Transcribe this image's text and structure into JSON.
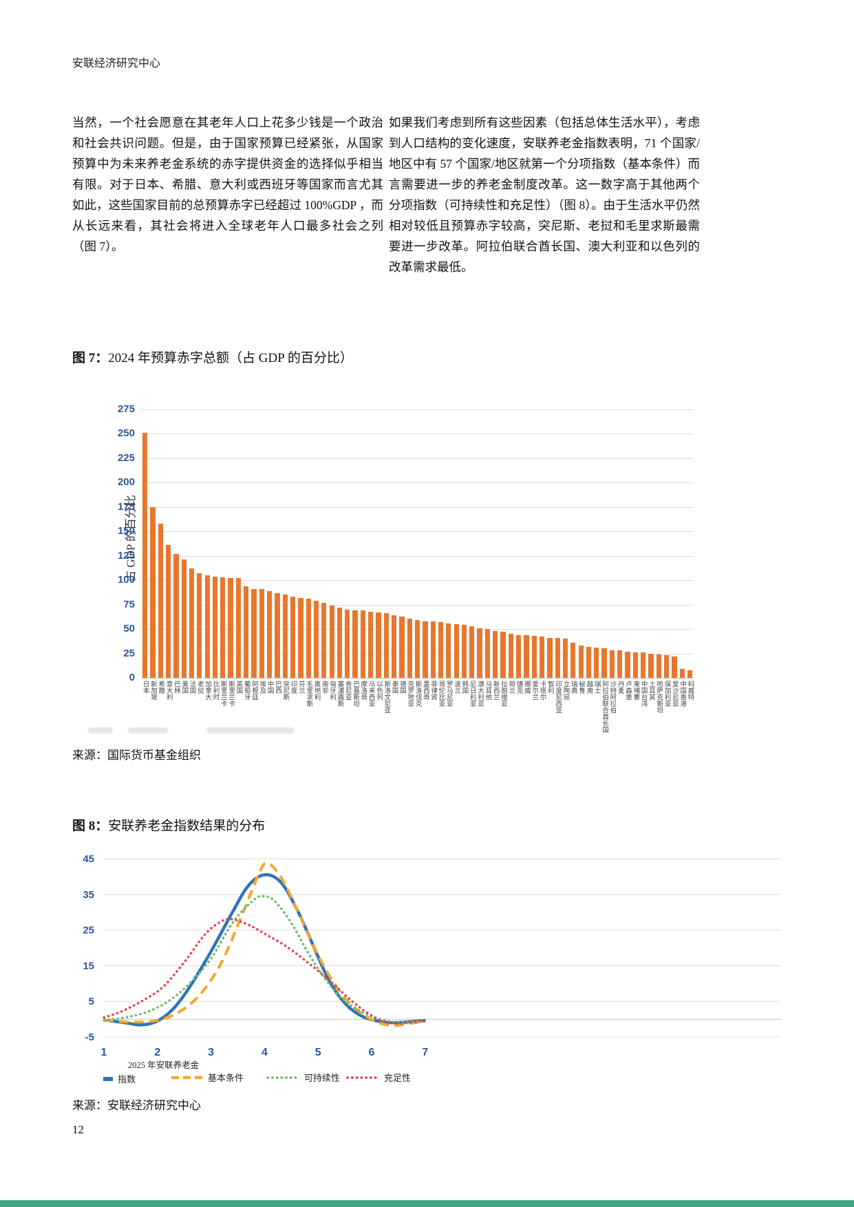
{
  "header": "安联经济研究中心",
  "page_number": "12",
  "body": {
    "left_paragraph": "当然，一个社会愿意在其老年人口上花多少钱是一个政治和社会共识问题。但是，由于国家预算已经紧张，从国家预算中为未来养老金系统的赤字提供资金的选择似乎相当有限。对于日本、希腊、意大利或西班牙等国家而言尤其如此，这些国家目前的总预算赤字已经超过 100%GDP ，而从长远来看，其社会将进入全球老年人口最多社会之列（图 7）。",
    "right_paragraph": "如果我们考虑到所有这些因素（包括总体生活水平），考虑到人口结构的变化速度，安联养老金指数表明，71 个国家/地区中有 57 个国家/地区就第一个分项指数（基本条件）而言需要进一步的养老金制度改革。这一数字高于其他两个分项指数（可持续性和充足性）（图 8）。由于生活水平仍然相对较低且预算赤字较高，突尼斯、老挝和毛里求斯最需要进一步改革。阿拉伯联合酋长国、澳大利亚和以色列的改革需求最低。"
  },
  "figure7": {
    "caption_label": "图 7：",
    "caption_text": "2024 年预算赤字总额（占 GDP 的百分比）",
    "y_axis_label": "占 GDP 的百分比",
    "source": "来源：国际货币基金组织"
  },
  "figure8": {
    "caption_label": "图 8：",
    "caption_text": "安联养老金指数结果的分布",
    "source": "来源：安联经济研究中心",
    "legend": {
      "item1_line1": "2025 年安联养老金",
      "item1_line2": "指数",
      "item2": "基本条件",
      "item3": "可持续性",
      "item4": "充足性"
    }
  },
  "chart_data": [
    {
      "type": "bar",
      "title": "2024 年预算赤字总额（占 GDP 的百分比）",
      "xlabel": "",
      "ylabel": "占 GDP 的百分比",
      "ylim": [
        0,
        275
      ],
      "yticks": [
        275,
        250,
        225,
        200,
        175,
        150,
        125,
        100,
        75,
        50,
        25,
        0
      ],
      "grid": true,
      "bar_color": "#E8772E",
      "categories": [
        "日本",
        "新加坡",
        "希腊",
        "意大利",
        "巴林",
        "美国",
        "法国",
        "老挝",
        "加拿大",
        "比利时",
        "斯里兰卡",
        "斯里兰卡",
        "英国",
        "葡萄牙",
        "阿根廷",
        "埃及",
        "中国",
        "巴西",
        "突尼斯",
        "印度",
        "芬兰",
        "毛里求斯",
        "奥地利",
        "南非",
        "匈牙利",
        "塞浦路斯",
        "肯尼亚",
        "巴基斯坦",
        "摩洛哥",
        "马来西亚",
        "以色列",
        "斯洛文尼亚",
        "泰国",
        "德国",
        "克罗地亚",
        "斯洛伐克",
        "墨西哥",
        "菲律宾",
        "哥伦比亚",
        "罗马尼亚",
        "波兰",
        "韩国",
        "尼日利亚",
        "澳大利亚",
        "马耳他",
        "新西兰",
        "拉脱维亚",
        "荷兰",
        "捷克",
        "挪威",
        "爱尔兰",
        "卡塔尔",
        "智利",
        "印度尼西亚",
        "立陶宛",
        "瑞典",
        "秘鲁",
        "越南",
        "瑞士",
        "阿拉伯联合酋长国",
        "沙特阿拉伯",
        "丹麦",
        "卢森堡",
        "柬埔寨",
        "中国台湾",
        "土耳其",
        "哈萨克斯坦",
        "保加利亚",
        "爱沙尼亚",
        "中国香港",
        "科威特"
      ],
      "values": [
        251,
        175,
        158,
        136,
        127,
        121,
        112,
        107,
        105,
        104,
        103,
        102,
        102,
        94,
        91,
        91,
        89,
        87,
        85,
        83,
        82,
        81,
        79,
        77,
        74,
        72,
        70,
        69,
        69,
        68,
        67,
        66,
        64,
        63,
        61,
        59,
        58,
        58,
        57,
        56,
        55,
        54,
        53,
        51,
        50,
        48,
        47,
        45,
        44,
        44,
        43,
        42,
        41,
        41,
        40,
        36,
        33,
        32,
        31,
        30,
        28,
        28,
        27,
        26,
        26,
        25,
        24,
        23,
        22,
        9,
        8
      ]
    },
    {
      "type": "line",
      "title": "安联养老金指数结果的分布",
      "xlabel": "",
      "ylabel": "",
      "xlim": [
        1,
        7
      ],
      "ylim": [
        -5,
        45
      ],
      "xticks": [
        1,
        2,
        3,
        4,
        5,
        6,
        7
      ],
      "yticks": [
        45,
        35,
        25,
        15,
        5,
        -5
      ],
      "grid": true,
      "legend_position": "bottom",
      "series": [
        {
          "name": "2025 年安联养老金指数",
          "color": "#2E75B6",
          "style": "solid",
          "points": [
            [
              1,
              -0.2
            ],
            [
              1.4,
              -1
            ],
            [
              1.7,
              -1.6
            ],
            [
              2.0,
              -0.5
            ],
            [
              2.3,
              3
            ],
            [
              2.6,
              9
            ],
            [
              3.0,
              19
            ],
            [
              3.4,
              30
            ],
            [
              3.7,
              37.5
            ],
            [
              4.0,
              40.5
            ],
            [
              4.3,
              38.5
            ],
            [
              4.6,
              31
            ],
            [
              4.9,
              21
            ],
            [
              5.2,
              11
            ],
            [
              5.5,
              4.5
            ],
            [
              5.8,
              1
            ],
            [
              6.1,
              -0.5
            ],
            [
              6.4,
              -1
            ],
            [
              6.7,
              -0.7
            ],
            [
              7,
              -0.4
            ]
          ]
        },
        {
          "name": "基本条件",
          "color": "#F0A830",
          "style": "dashed",
          "points": [
            [
              1,
              -0.2
            ],
            [
              1.5,
              -0.8
            ],
            [
              2.0,
              -0.3
            ],
            [
              2.4,
              2
            ],
            [
              2.8,
              7
            ],
            [
              3.2,
              16
            ],
            [
              3.6,
              30
            ],
            [
              3.9,
              41
            ],
            [
              4.05,
              43.8
            ],
            [
              4.3,
              40
            ],
            [
              4.6,
              31
            ],
            [
              4.9,
              21
            ],
            [
              5.2,
              12.5
            ],
            [
              5.5,
              6
            ],
            [
              5.8,
              1.8
            ],
            [
              6.1,
              -0.8
            ],
            [
              6.4,
              -1.8
            ],
            [
              6.7,
              -1.2
            ],
            [
              7,
              -0.6
            ]
          ]
        },
        {
          "name": "可持续性",
          "color": "#67BD69",
          "style": "dotted",
          "points": [
            [
              1,
              -0.3
            ],
            [
              1.4,
              0.5
            ],
            [
              1.8,
              2
            ],
            [
              2.2,
              5
            ],
            [
              2.6,
              10
            ],
            [
              3.0,
              17
            ],
            [
              3.4,
              27
            ],
            [
              3.8,
              33.5
            ],
            [
              4.0,
              34.5
            ],
            [
              4.2,
              33
            ],
            [
              4.5,
              27
            ],
            [
              4.8,
              19
            ],
            [
              5.1,
              12
            ],
            [
              5.4,
              6.5
            ],
            [
              5.7,
              3
            ],
            [
              6.0,
              0.8
            ],
            [
              6.3,
              -0.5
            ],
            [
              6.6,
              -0.8
            ],
            [
              7,
              -0.4
            ]
          ]
        },
        {
          "name": "充足性",
          "color": "#E8434F",
          "style": "dotted",
          "points": [
            [
              1,
              0.5
            ],
            [
              1.3,
              2
            ],
            [
              1.7,
              5
            ],
            [
              2.1,
              9
            ],
            [
              2.5,
              16
            ],
            [
              2.9,
              24
            ],
            [
              3.2,
              27.5
            ],
            [
              3.4,
              28
            ],
            [
              3.7,
              26.5
            ],
            [
              4.0,
              24
            ],
            [
              4.4,
              20.5
            ],
            [
              4.8,
              16
            ],
            [
              5.2,
              11
            ],
            [
              5.6,
              5.5
            ],
            [
              5.9,
              2
            ],
            [
              6.2,
              -0.5
            ],
            [
              6.5,
              -1.2
            ],
            [
              6.8,
              -0.8
            ],
            [
              7,
              -0.4
            ]
          ]
        }
      ]
    }
  ]
}
